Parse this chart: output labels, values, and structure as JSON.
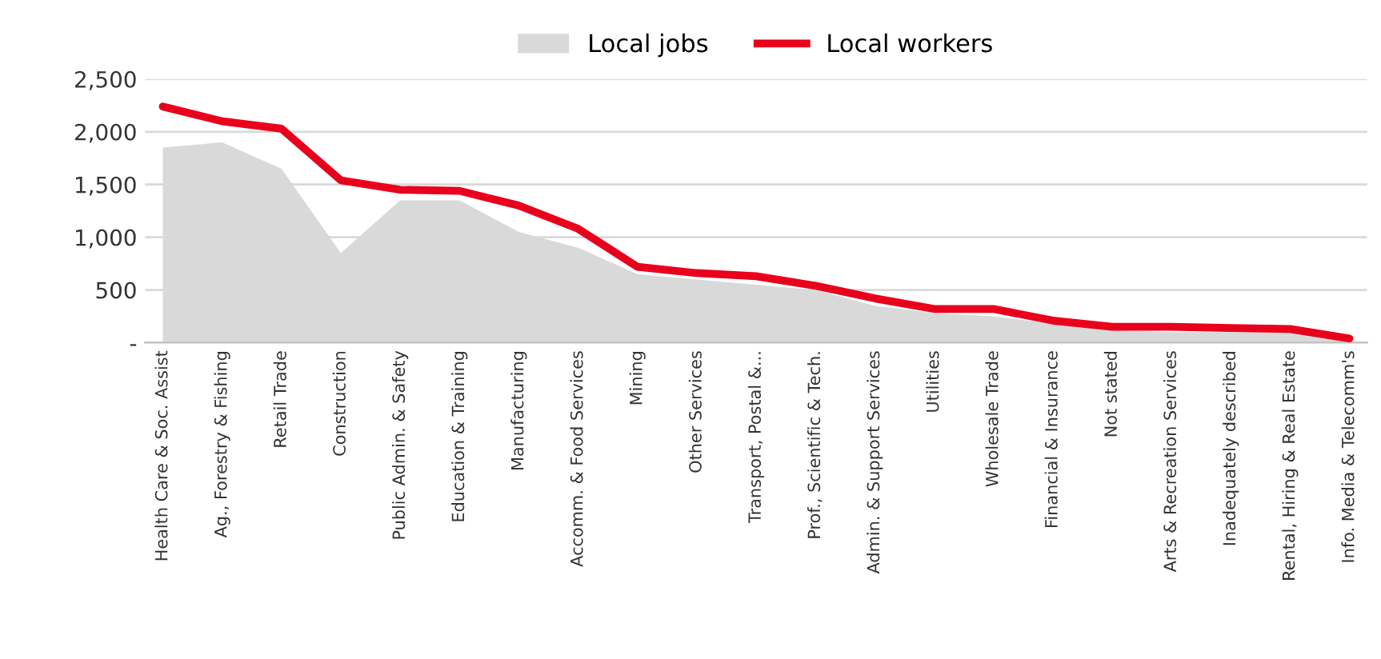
{
  "chart_data": {
    "type": "area",
    "categories": [
      "Health Care & Soc. Assist",
      "Ag., Forestry & Fishing",
      "Retail Trade",
      "Construction",
      "Public Admin. & Safety",
      "Education & Training",
      "Manufacturing",
      "Accomm. & Food Services",
      "Mining",
      "Other Services",
      "Transport, Postal &...",
      "Prof., Scientific & Tech.",
      "Admin. & Support Services",
      "Utilities",
      "Wholesale Trade",
      "Financial & Insurance",
      "Not stated",
      "Arts & Recreation Services",
      "Inadequately described",
      "Rental, Hiring & Real Estate",
      "Info. Media & Telecomm's"
    ],
    "series": [
      {
        "name": "Local jobs",
        "color": "#d9d9d9",
        "values": [
          1850,
          1900,
          1650,
          850,
          1350,
          1350,
          1050,
          900,
          650,
          600,
          550,
          500,
          350,
          280,
          250,
          180,
          120,
          100,
          100,
          100,
          40
        ]
      },
      {
        "name": "Local workers",
        "type": "line",
        "color": "#e8001c",
        "values": [
          2240,
          2100,
          2030,
          1540,
          1450,
          1440,
          1300,
          1080,
          720,
          660,
          630,
          540,
          420,
          320,
          320,
          210,
          150,
          150,
          140,
          130,
          40
        ]
      }
    ],
    "ylim": [
      0,
      2500
    ],
    "yticks": [
      {
        "value": 0,
        "label": "-"
      },
      {
        "value": 500,
        "label": "500"
      },
      {
        "value": 1000,
        "label": "1,000"
      },
      {
        "value": 1500,
        "label": "1,500"
      },
      {
        "value": 2000,
        "label": "2,000"
      },
      {
        "value": 2500,
        "label": "2,500"
      }
    ],
    "grid": "y",
    "legend": "top"
  }
}
